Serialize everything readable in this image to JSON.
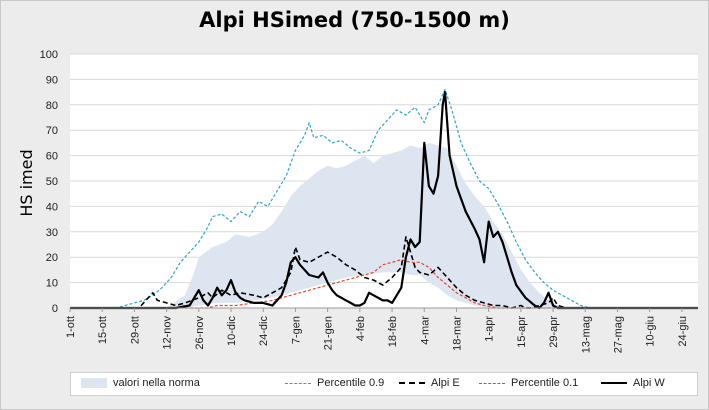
{
  "chart_data": {
    "type": "line",
    "title": "Alpi HSimed (750-1500 m)",
    "ylabel": "HS imed",
    "xlabel": "",
    "ylim": [
      0,
      100
    ],
    "yticks": [
      0,
      10,
      20,
      30,
      40,
      50,
      60,
      70,
      80,
      90,
      100
    ],
    "grid": true,
    "legend_position": "bottom",
    "x_tick_labels": [
      {
        "day": 0,
        "label": "1-ott"
      },
      {
        "day": 14,
        "label": "15-ott"
      },
      {
        "day": 28,
        "label": "29-ott"
      },
      {
        "day": 42,
        "label": "12-nov"
      },
      {
        "day": 56,
        "label": "26-nov"
      },
      {
        "day": 70,
        "label": "10-dic"
      },
      {
        "day": 84,
        "label": "24-dic"
      },
      {
        "day": 98,
        "label": "7-gen"
      },
      {
        "day": 112,
        "label": "21-gen"
      },
      {
        "day": 126,
        "label": "4-feb"
      },
      {
        "day": 140,
        "label": "18-feb"
      },
      {
        "day": 154,
        "label": "4-mar"
      },
      {
        "day": 168,
        "label": "18-mar"
      },
      {
        "day": 182,
        "label": "1-apr"
      },
      {
        "day": 196,
        "label": "15-apr"
      },
      {
        "day": 210,
        "label": "29-apr"
      },
      {
        "day": 224,
        "label": "13-mag"
      },
      {
        "day": 238,
        "label": "27-mag"
      },
      {
        "day": 252,
        "label": "10-giu"
      },
      {
        "day": 266,
        "label": "24-giu"
      }
    ],
    "x_max_day": 273,
    "band": {
      "name": "valori nella norma",
      "color": "#dde5f0",
      "upper": [
        [
          0,
          0
        ],
        [
          42,
          0
        ],
        [
          50,
          5
        ],
        [
          54,
          14
        ],
        [
          56,
          20
        ],
        [
          62,
          24
        ],
        [
          68,
          26
        ],
        [
          72,
          29
        ],
        [
          78,
          28
        ],
        [
          84,
          30
        ],
        [
          88,
          33
        ],
        [
          92,
          38
        ],
        [
          96,
          44
        ],
        [
          100,
          48
        ],
        [
          104,
          51
        ],
        [
          108,
          54
        ],
        [
          112,
          56
        ],
        [
          116,
          55
        ],
        [
          120,
          56
        ],
        [
          124,
          58
        ],
        [
          128,
          60
        ],
        [
          132,
          57
        ],
        [
          136,
          60
        ],
        [
          140,
          61
        ],
        [
          144,
          62
        ],
        [
          148,
          64
        ],
        [
          152,
          63
        ],
        [
          156,
          65
        ],
        [
          160,
          64
        ],
        [
          164,
          63
        ],
        [
          168,
          56
        ],
        [
          172,
          49
        ],
        [
          176,
          44
        ],
        [
          180,
          40
        ],
        [
          184,
          34
        ],
        [
          188,
          29
        ],
        [
          192,
          22
        ],
        [
          196,
          15
        ],
        [
          200,
          10
        ],
        [
          204,
          6
        ],
        [
          208,
          3
        ],
        [
          212,
          1
        ],
        [
          216,
          0
        ],
        [
          273,
          0
        ]
      ],
      "lower": [
        [
          0,
          0
        ],
        [
          50,
          0
        ],
        [
          56,
          1
        ],
        [
          64,
          2
        ],
        [
          72,
          2
        ],
        [
          80,
          3
        ],
        [
          88,
          4
        ],
        [
          96,
          6
        ],
        [
          104,
          8
        ],
        [
          112,
          10
        ],
        [
          120,
          12
        ],
        [
          128,
          13
        ],
        [
          136,
          14
        ],
        [
          144,
          14
        ],
        [
          148,
          13
        ],
        [
          152,
          13
        ],
        [
          156,
          10
        ],
        [
          160,
          8
        ],
        [
          164,
          5
        ],
        [
          168,
          3
        ],
        [
          172,
          2
        ],
        [
          176,
          1
        ],
        [
          184,
          0
        ],
        [
          273,
          0
        ]
      ]
    },
    "series": [
      {
        "name": "Percentile 0.9",
        "color": "#2aa7c6",
        "dash": "3,2",
        "width": 1.2,
        "points": [
          [
            0,
            0
          ],
          [
            20,
            0
          ],
          [
            24,
            1
          ],
          [
            28,
            2
          ],
          [
            32,
            3
          ],
          [
            36,
            5
          ],
          [
            40,
            8
          ],
          [
            44,
            12
          ],
          [
            48,
            18
          ],
          [
            52,
            22
          ],
          [
            56,
            26
          ],
          [
            60,
            32
          ],
          [
            62,
            36
          ],
          [
            66,
            37
          ],
          [
            70,
            34
          ],
          [
            74,
            38
          ],
          [
            78,
            36
          ],
          [
            82,
            42
          ],
          [
            86,
            40
          ],
          [
            90,
            46
          ],
          [
            94,
            52
          ],
          [
            98,
            62
          ],
          [
            102,
            68
          ],
          [
            104,
            73
          ],
          [
            106,
            67
          ],
          [
            110,
            68
          ],
          [
            114,
            65
          ],
          [
            118,
            66
          ],
          [
            122,
            63
          ],
          [
            126,
            61
          ],
          [
            130,
            62
          ],
          [
            134,
            70
          ],
          [
            138,
            74
          ],
          [
            142,
            78
          ],
          [
            146,
            76
          ],
          [
            150,
            79
          ],
          [
            154,
            73
          ],
          [
            156,
            78
          ],
          [
            160,
            80
          ],
          [
            163,
            86
          ],
          [
            166,
            78
          ],
          [
            170,
            65
          ],
          [
            174,
            57
          ],
          [
            178,
            50
          ],
          [
            182,
            47
          ],
          [
            186,
            41
          ],
          [
            190,
            34
          ],
          [
            194,
            26
          ],
          [
            198,
            19
          ],
          [
            202,
            14
          ],
          [
            206,
            10
          ],
          [
            210,
            7
          ],
          [
            214,
            5
          ],
          [
            218,
            3
          ],
          [
            222,
            1
          ],
          [
            226,
            0
          ],
          [
            273,
            0
          ]
        ]
      },
      {
        "name": "Alpi E",
        "color": "#000000",
        "dash": "5,3",
        "width": 1.6,
        "points": [
          [
            0,
            0
          ],
          [
            30,
            0
          ],
          [
            34,
            4
          ],
          [
            36,
            6
          ],
          [
            38,
            3
          ],
          [
            42,
            2
          ],
          [
            46,
            1
          ],
          [
            50,
            2
          ],
          [
            56,
            4
          ],
          [
            60,
            6
          ],
          [
            62,
            4
          ],
          [
            66,
            7
          ],
          [
            70,
            5
          ],
          [
            74,
            6
          ],
          [
            80,
            5
          ],
          [
            84,
            4
          ],
          [
            88,
            6
          ],
          [
            92,
            8
          ],
          [
            96,
            14
          ],
          [
            98,
            24
          ],
          [
            100,
            19
          ],
          [
            104,
            18
          ],
          [
            108,
            20
          ],
          [
            112,
            22
          ],
          [
            116,
            20
          ],
          [
            120,
            17
          ],
          [
            124,
            15
          ],
          [
            128,
            12
          ],
          [
            132,
            11
          ],
          [
            136,
            9
          ],
          [
            140,
            12
          ],
          [
            142,
            14
          ],
          [
            144,
            16
          ],
          [
            146,
            28
          ],
          [
            148,
            22
          ],
          [
            150,
            16
          ],
          [
            152,
            14
          ],
          [
            156,
            13
          ],
          [
            160,
            16
          ],
          [
            164,
            12
          ],
          [
            168,
            8
          ],
          [
            172,
            5
          ],
          [
            176,
            3
          ],
          [
            180,
            2
          ],
          [
            184,
            1
          ],
          [
            188,
            1
          ],
          [
            192,
            0
          ],
          [
            196,
            1
          ],
          [
            198,
            0
          ],
          [
            200,
            0
          ],
          [
            204,
            1
          ],
          [
            208,
            2
          ],
          [
            210,
            4
          ],
          [
            212,
            1
          ],
          [
            216,
            0
          ],
          [
            273,
            0
          ]
        ]
      },
      {
        "name": "Percentile 0.1",
        "color": "#e8432d",
        "dash": "3,2",
        "width": 1.2,
        "points": [
          [
            0,
            0
          ],
          [
            60,
            0
          ],
          [
            64,
            1
          ],
          [
            72,
            1
          ],
          [
            80,
            2
          ],
          [
            88,
            3
          ],
          [
            96,
            5
          ],
          [
            104,
            7
          ],
          [
            112,
            9
          ],
          [
            120,
            11
          ],
          [
            128,
            13
          ],
          [
            132,
            14
          ],
          [
            136,
            17
          ],
          [
            140,
            18
          ],
          [
            144,
            19
          ],
          [
            148,
            18
          ],
          [
            152,
            18
          ],
          [
            156,
            16
          ],
          [
            160,
            12
          ],
          [
            164,
            9
          ],
          [
            168,
            6
          ],
          [
            172,
            4
          ],
          [
            176,
            2
          ],
          [
            180,
            1
          ],
          [
            186,
            0
          ],
          [
            273,
            0
          ]
        ]
      },
      {
        "name": "Alpi W",
        "color": "#000000",
        "dash": "",
        "width": 2.2,
        "points": [
          [
            0,
            0
          ],
          [
            46,
            0
          ],
          [
            52,
            1
          ],
          [
            54,
            4
          ],
          [
            56,
            7
          ],
          [
            58,
            3
          ],
          [
            60,
            1
          ],
          [
            62,
            4
          ],
          [
            64,
            8
          ],
          [
            66,
            5
          ],
          [
            68,
            7
          ],
          [
            70,
            11
          ],
          [
            72,
            6
          ],
          [
            74,
            4
          ],
          [
            76,
            3
          ],
          [
            80,
            2
          ],
          [
            84,
            2
          ],
          [
            88,
            1
          ],
          [
            90,
            3
          ],
          [
            92,
            5
          ],
          [
            94,
            10
          ],
          [
            96,
            18
          ],
          [
            98,
            20
          ],
          [
            100,
            17
          ],
          [
            102,
            15
          ],
          [
            104,
            13
          ],
          [
            108,
            12
          ],
          [
            110,
            14
          ],
          [
            112,
            10
          ],
          [
            114,
            7
          ],
          [
            116,
            5
          ],
          [
            118,
            4
          ],
          [
            120,
            3
          ],
          [
            122,
            2
          ],
          [
            124,
            1
          ],
          [
            126,
            1
          ],
          [
            128,
            2
          ],
          [
            130,
            6
          ],
          [
            132,
            5
          ],
          [
            134,
            4
          ],
          [
            136,
            3
          ],
          [
            138,
            3
          ],
          [
            140,
            2
          ],
          [
            142,
            5
          ],
          [
            144,
            8
          ],
          [
            146,
            20
          ],
          [
            148,
            27
          ],
          [
            150,
            24
          ],
          [
            152,
            26
          ],
          [
            154,
            65
          ],
          [
            156,
            48
          ],
          [
            158,
            45
          ],
          [
            160,
            52
          ],
          [
            162,
            80
          ],
          [
            163,
            85
          ],
          [
            165,
            60
          ],
          [
            168,
            48
          ],
          [
            172,
            38
          ],
          [
            176,
            31
          ],
          [
            178,
            27
          ],
          [
            180,
            18
          ],
          [
            182,
            34
          ],
          [
            184,
            28
          ],
          [
            186,
            30
          ],
          [
            188,
            26
          ],
          [
            190,
            20
          ],
          [
            192,
            14
          ],
          [
            194,
            9
          ],
          [
            198,
            4
          ],
          [
            202,
            1
          ],
          [
            204,
            0
          ],
          [
            206,
            2
          ],
          [
            208,
            6
          ],
          [
            210,
            1
          ],
          [
            212,
            0
          ],
          [
            273,
            0
          ]
        ]
      }
    ]
  },
  "legend": {
    "items": [
      {
        "label": "valori nella norma"
      },
      {
        "label": "Percentile 0.9"
      },
      {
        "label": "Alpi E"
      },
      {
        "label": "Percentile 0.1"
      },
      {
        "label": "Alpi W"
      }
    ]
  }
}
